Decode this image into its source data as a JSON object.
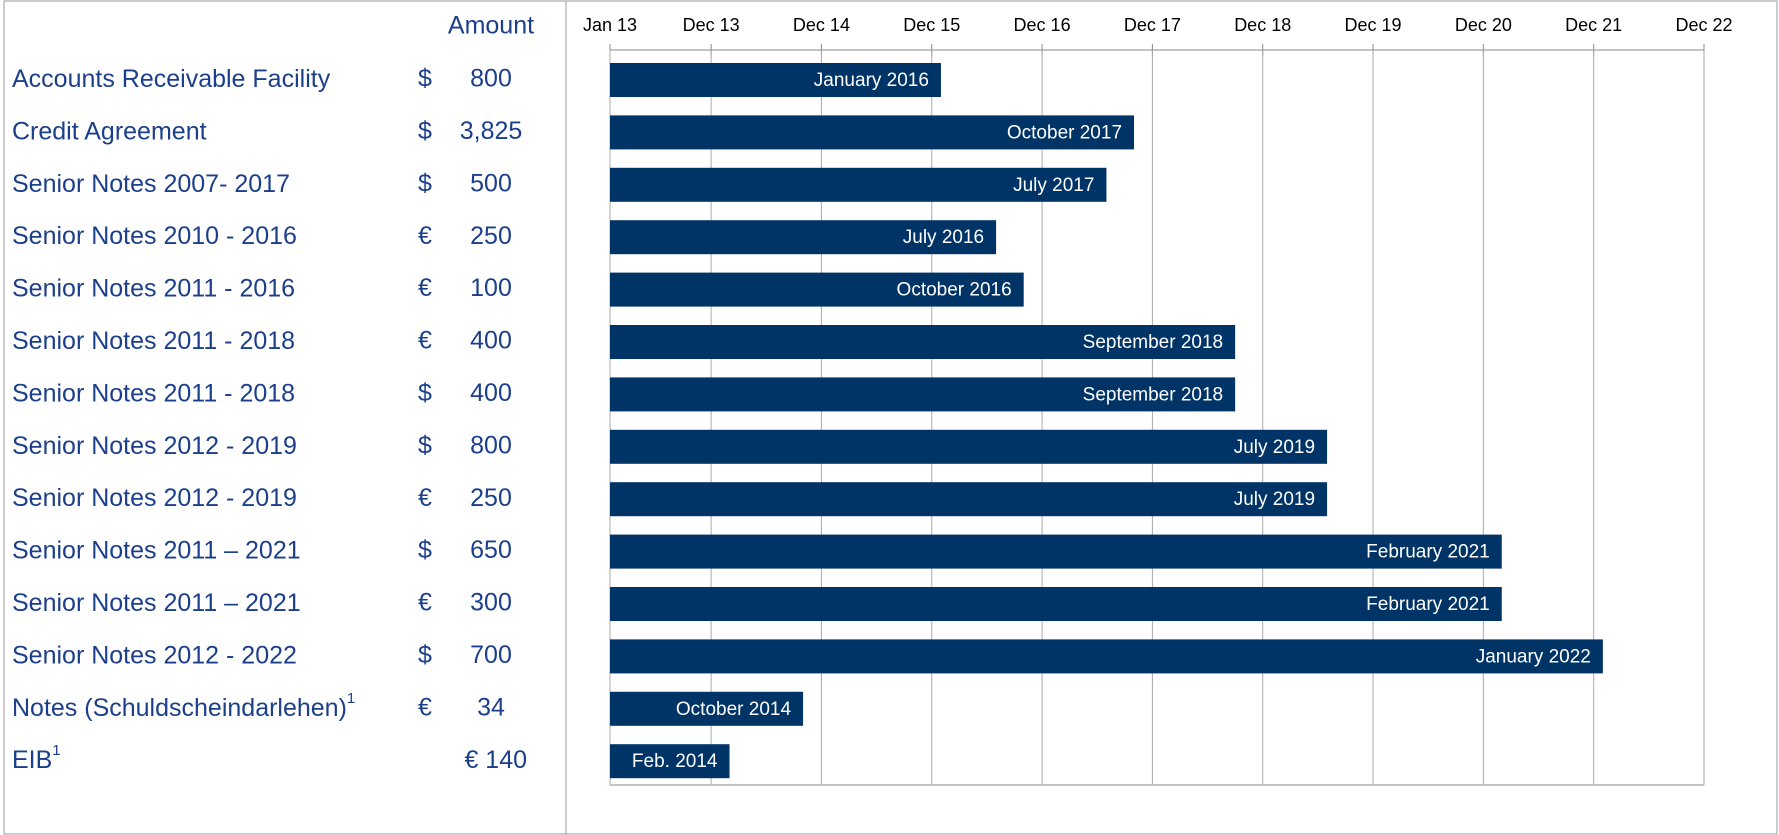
{
  "chart_data": {
    "type": "gantt",
    "amount_header": "Amount",
    "categories": [
      "Accounts Receivable Facility",
      "Credit  Agreement",
      "Senior Notes 2007- 2017",
      "Senior Notes 2010 - 2016",
      "Senior Notes 2011 - 2016",
      "Senior Notes 2011 - 2018",
      "Senior Notes 2011 - 2018",
      "Senior Notes 2012 - 2019",
      "Senior Notes 2012 - 2019",
      "Senior Notes 2011 – 2021",
      "Senior Notes 2011 – 2021",
      "Senior Notes 2012 - 2022",
      "Notes (Schuldscheindarlehen)",
      "EIB"
    ],
    "footnote_marks": [
      null,
      null,
      null,
      null,
      null,
      null,
      null,
      null,
      null,
      null,
      null,
      null,
      "1",
      "1"
    ],
    "currencies": [
      "$",
      "$",
      "$",
      "€",
      "€",
      "€",
      "$",
      "$",
      "€",
      "$",
      "€",
      "$",
      "€",
      null
    ],
    "amounts": [
      "800",
      "3,825",
      "500",
      "250",
      "100",
      "400",
      "400",
      "800",
      "250",
      "650",
      "300",
      "700",
      "34",
      "€ 140"
    ],
    "start": "2013-01",
    "values": [
      "2016-01",
      "2017-10",
      "2017-07",
      "2016-07",
      "2016-10",
      "2018-09",
      "2018-09",
      "2019-07",
      "2019-07",
      "2021-02",
      "2021-02",
      "2022-01",
      "2014-10",
      "2014-02"
    ],
    "value_labels": [
      "January 2016",
      "October 2017",
      "July 2017",
      "July 2016",
      "October 2016",
      "September 2018",
      "September 2018",
      "July 2019",
      "July 2019",
      "February 2021",
      "February 2021",
      "January 2022",
      "October 2014",
      "Feb. 2014"
    ],
    "color": "#003366",
    "xlim": [
      "2013-01",
      "2022-12"
    ],
    "xticks": [
      {
        "value": "2013-01",
        "label": "Jan 13"
      },
      {
        "value": "2013-12",
        "label": "Dec 13"
      },
      {
        "value": "2014-12",
        "label": "Dec 14"
      },
      {
        "value": "2015-12",
        "label": "Dec 15"
      },
      {
        "value": "2016-12",
        "label": "Dec 16"
      },
      {
        "value": "2017-12",
        "label": "Dec 17"
      },
      {
        "value": "2018-12",
        "label": "Dec 18"
      },
      {
        "value": "2019-12",
        "label": "Dec 19"
      },
      {
        "value": "2020-12",
        "label": "Dec 20"
      },
      {
        "value": "2021-12",
        "label": "Dec 21"
      },
      {
        "value": "2022-12",
        "label": "Dec 22"
      }
    ],
    "grid": true
  }
}
